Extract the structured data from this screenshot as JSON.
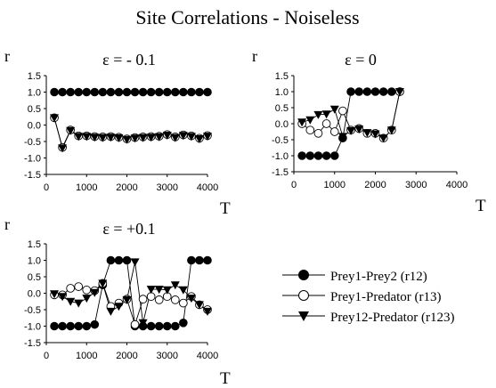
{
  "figure_title": "Site Correlations - Noiseless",
  "legend": [
    {
      "label": "Prey1-Prey2 (r12)",
      "marker": "filled-circle"
    },
    {
      "label": "Prey1-Predator (r13)",
      "marker": "open-circle"
    },
    {
      "label": "Prey12-Predator (r123)",
      "marker": "filled-down-triangle"
    }
  ],
  "colors": {
    "ink": "#000000",
    "background": "#ffffff"
  },
  "chart_data": [
    {
      "type": "line",
      "title": "ε = - 0.1",
      "xlabel": "T",
      "ylabel": "r",
      "xlim": [
        0,
        4000
      ],
      "ylim": [
        -1.5,
        1.5
      ],
      "xticks": [
        "0",
        "1000",
        "2000",
        "3000",
        "4000"
      ],
      "yticks": [
        "1.5",
        "1.0",
        "0.5",
        "0.0",
        "-0.5",
        "-1.0",
        "-1.5"
      ],
      "series": [
        {
          "name": "Prey1-Prey2 (r12)",
          "x": [
            200,
            400,
            600,
            800,
            1000,
            1200,
            1400,
            1600,
            1800,
            2000,
            2200,
            2400,
            2600,
            2800,
            3000,
            3200,
            3400,
            3600,
            3800,
            4000
          ],
          "y": [
            1,
            1,
            1,
            1,
            1,
            1,
            1,
            1,
            1,
            1,
            1,
            1,
            1,
            1,
            1,
            1,
            1,
            1,
            1,
            1
          ]
        },
        {
          "name": "Prey1-Predator (r13)",
          "x": [
            200,
            400,
            600,
            800,
            1000,
            1200,
            1400,
            1600,
            1800,
            2000,
            2200,
            2400,
            2600,
            2800,
            3000,
            3200,
            3400,
            3600,
            3800,
            4000
          ],
          "y": [
            0.22,
            -0.68,
            -0.15,
            -0.33,
            -0.33,
            -0.35,
            -0.36,
            -0.35,
            -0.37,
            -0.42,
            -0.38,
            -0.36,
            -0.35,
            -0.34,
            -0.29,
            -0.36,
            -0.3,
            -0.33,
            -0.4,
            -0.32
          ]
        },
        {
          "name": "Prey12-Predator (r123)",
          "x": [
            200,
            400,
            600,
            800,
            1000,
            1200,
            1400,
            1600,
            1800,
            2000,
            2200,
            2400,
            2600,
            2800,
            3000,
            3200,
            3400,
            3600,
            3800,
            4000
          ],
          "y": [
            0.22,
            -0.7,
            -0.17,
            -0.35,
            -0.35,
            -0.37,
            -0.38,
            -0.37,
            -0.39,
            -0.44,
            -0.4,
            -0.38,
            -0.37,
            -0.36,
            -0.31,
            -0.38,
            -0.32,
            -0.35,
            -0.42,
            -0.34
          ]
        }
      ]
    },
    {
      "type": "line",
      "title": "ε = 0",
      "xlabel": "T",
      "ylabel": "r",
      "xlim": [
        0,
        4000
      ],
      "ylim": [
        -1.5,
        1.5
      ],
      "xticks": [
        "0",
        "1000",
        "2000",
        "3000",
        "4000"
      ],
      "yticks": [
        "1.5",
        "1.0",
        "0.5",
        "0.0",
        "-0.5",
        "-1.0",
        "-1.5"
      ],
      "series": [
        {
          "name": "Prey1-Prey2 (r12)",
          "x": [
            200,
            400,
            600,
            800,
            1000,
            1200,
            1400,
            1600,
            1800,
            2000,
            2200,
            2400,
            2600
          ],
          "y": [
            -1,
            -1,
            -1,
            -1,
            -1,
            -0.45,
            1,
            1,
            1,
            1,
            1,
            1,
            1
          ]
        },
        {
          "name": "Prey1-Predator (r13)",
          "x": [
            200,
            400,
            600,
            800,
            1000,
            1200,
            1400,
            1600,
            1800,
            2000,
            2200,
            2400,
            2600
          ],
          "y": [
            0,
            -0.2,
            -0.3,
            0,
            -0.25,
            0.4,
            -0.2,
            -0.15,
            -0.3,
            -0.3,
            -0.45,
            -0.2,
            1
          ]
        },
        {
          "name": "Prey12-Predator (r123)",
          "x": [
            200,
            400,
            600,
            800,
            1000,
            1200,
            1400,
            1600,
            1800,
            2000,
            2200,
            2400,
            2600
          ],
          "y": [
            0.05,
            0.12,
            0.28,
            0.3,
            0.45,
            -0.4,
            -0.22,
            -0.17,
            -0.28,
            -0.32,
            -0.45,
            -0.2,
            1
          ]
        }
      ]
    },
    {
      "type": "line",
      "title": "ε = +0.1",
      "xlabel": "T",
      "ylabel": "r",
      "xlim": [
        0,
        4000
      ],
      "ylim": [
        -1.5,
        1.5
      ],
      "xticks": [
        "0",
        "1000",
        "2000",
        "3000",
        "4000"
      ],
      "yticks": [
        "1.5",
        "1.0",
        "0.5",
        "0.0",
        "-0.5",
        "-1.0",
        "-1.5"
      ],
      "series": [
        {
          "name": "Prey1-Prey2 (r12)",
          "x": [
            200,
            400,
            600,
            800,
            1000,
            1200,
            1400,
            1600,
            1800,
            2000,
            2200,
            2400,
            2600,
            2800,
            3000,
            3200,
            3400,
            3600,
            3800,
            4000
          ],
          "y": [
            -1,
            -1,
            -1,
            -1,
            -1,
            -0.95,
            0.25,
            1,
            1,
            1,
            -1,
            -1,
            -1,
            -1,
            -1,
            -1,
            -0.9,
            1,
            1,
            1
          ]
        },
        {
          "name": "Prey1-Predator (r13)",
          "x": [
            200,
            400,
            600,
            800,
            1000,
            1200,
            1400,
            1600,
            1800,
            2000,
            2200,
            2400,
            2600,
            2800,
            3000,
            3200,
            3400,
            3600,
            3800,
            4000
          ],
          "y": [
            -0.05,
            -0.05,
            0.15,
            0.2,
            0.1,
            0.08,
            0.3,
            -0.4,
            -0.3,
            -0.18,
            -0.95,
            -0.18,
            -0.1,
            -0.2,
            -0.1,
            -0.2,
            -0.3,
            -0.1,
            -0.35,
            -0.5
          ]
        },
        {
          "name": "Prey12-Predator (r123)",
          "x": [
            200,
            400,
            600,
            800,
            1000,
            1200,
            1400,
            1600,
            1800,
            2000,
            2200,
            2400,
            2600,
            2800,
            3000,
            3200,
            3400,
            3600,
            3800,
            4000
          ],
          "y": [
            -0.02,
            -0.1,
            -0.25,
            -0.3,
            -0.15,
            0.02,
            0.3,
            -0.55,
            -0.4,
            -0.2,
            0.95,
            -0.9,
            0.12,
            0.12,
            0.1,
            0.25,
            0.1,
            -0.15,
            -0.35,
            -0.55
          ]
        }
      ]
    }
  ]
}
